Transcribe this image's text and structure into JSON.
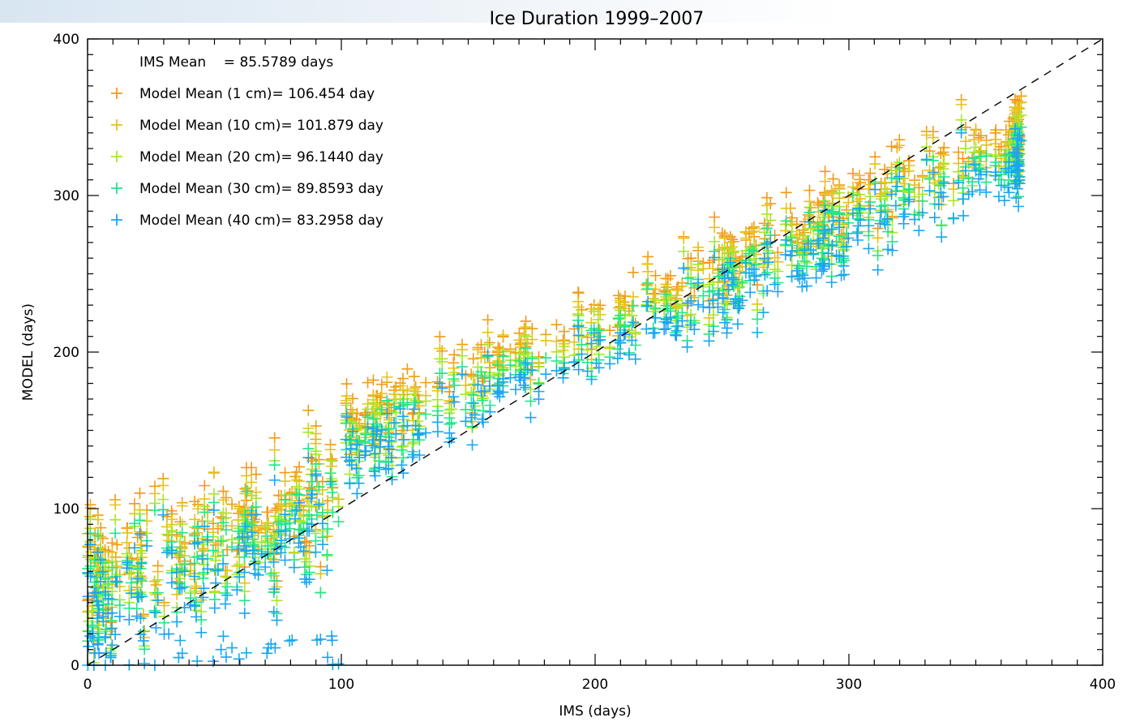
{
  "chart_data": {
    "type": "scatter",
    "title": "Ice Duration 1999–2007",
    "xlabel": "IMS (days)",
    "ylabel": "MODEL (days)",
    "xlim": [
      0,
      400
    ],
    "ylim": [
      0,
      400
    ],
    "x_ticks": [
      "0",
      "100",
      "200",
      "300",
      "400"
    ],
    "y_ticks": [
      "0",
      "100",
      "200",
      "300",
      "400"
    ],
    "grid": false,
    "reference_line": "1:1 (dashed black)",
    "legend_position": "top-left",
    "legend_header": "IMS Mean    = 85.5789 days",
    "series": [
      {
        "name": "Model Mean (1 cm)= 106.454 day",
        "color": "#f29a1a",
        "bias": 20,
        "points": []
      },
      {
        "name": "Model Mean (10 cm)= 101.879 day",
        "color": "#e6c21a",
        "bias": 14,
        "points": []
      },
      {
        "name": "Model Mean (20 cm)= 96.1440 day",
        "color": "#a8e62a",
        "bias": 7,
        "points": []
      },
      {
        "name": "Model Mean (30 cm)= 89.8593 day",
        "color": "#22e68a",
        "bias": 2,
        "points": []
      },
      {
        "name": "Model Mean (40 cm)= 83.2958 day",
        "color": "#1aa6ee",
        "bias": -5,
        "points": []
      }
    ],
    "note": "Dense scatter (~thousands of '+' markers per series); values approximated from plot"
  }
}
